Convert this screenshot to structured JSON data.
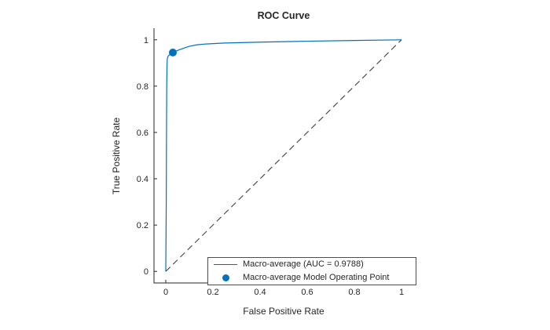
{
  "figure": {
    "title": "ROC Curve"
  },
  "axes": {
    "xlabel": "False Positive Rate",
    "ylabel": "True Positive Rate"
  },
  "legend": {
    "entries": [
      {
        "type": "line",
        "label": "Macro-average (AUC = 0.9788)"
      },
      {
        "type": "marker",
        "label": "Macro-average Model Operating Point"
      }
    ]
  },
  "colors": {
    "series": "#0072BD",
    "chance_line": "#4d4d4d",
    "axis": "#262626"
  },
  "chart_data": {
    "type": "line",
    "title": "ROC Curve",
    "xlabel": "False Positive Rate",
    "ylabel": "True Positive Rate",
    "xlim": [
      -0.05,
      1.05
    ],
    "ylim": [
      -0.05,
      1.05
    ],
    "xticks": [
      0,
      0.2,
      0.4,
      0.6,
      0.8,
      1
    ],
    "yticks": [
      0,
      0.2,
      0.4,
      0.6,
      0.8,
      1
    ],
    "xtick_labels": [
      "0",
      "0.2",
      "0.4",
      "0.6",
      "0.8",
      "1"
    ],
    "ytick_labels": [
      "0",
      "0.2",
      "0.4",
      "0.6",
      "0.8",
      "1"
    ],
    "grid": false,
    "legend_position": "south-east-inside",
    "auc": 0.9788,
    "series": [
      {
        "name": "Macro-average (AUC = 0.9788)",
        "color": "#0072BD",
        "style": "solid",
        "points": [
          [
            0,
            0
          ],
          [
            0.002,
            0.3
          ],
          [
            0.003,
            0.6
          ],
          [
            0.004,
            0.8
          ],
          [
            0.005,
            0.88
          ],
          [
            0.006,
            0.915
          ],
          [
            0.008,
            0.925
          ],
          [
            0.012,
            0.932
          ],
          [
            0.02,
            0.938
          ],
          [
            0.03,
            0.945
          ],
          [
            0.04,
            0.95
          ],
          [
            0.06,
            0.958
          ],
          [
            0.08,
            0.965
          ],
          [
            0.1,
            0.972
          ],
          [
            0.13,
            0.978
          ],
          [
            0.17,
            0.982
          ],
          [
            0.25,
            0.986
          ],
          [
            0.4,
            0.99
          ],
          [
            0.6,
            0.994
          ],
          [
            0.8,
            0.997
          ],
          [
            1,
            1
          ]
        ]
      },
      {
        "name": "chance-diagonal",
        "color": "#4d4d4d",
        "style": "dashed",
        "points": [
          [
            0,
            0
          ],
          [
            1,
            1
          ]
        ]
      }
    ],
    "operating_point": {
      "x": 0.03,
      "y": 0.945,
      "label": "Macro-average Model Operating Point",
      "color": "#0072BD"
    }
  }
}
